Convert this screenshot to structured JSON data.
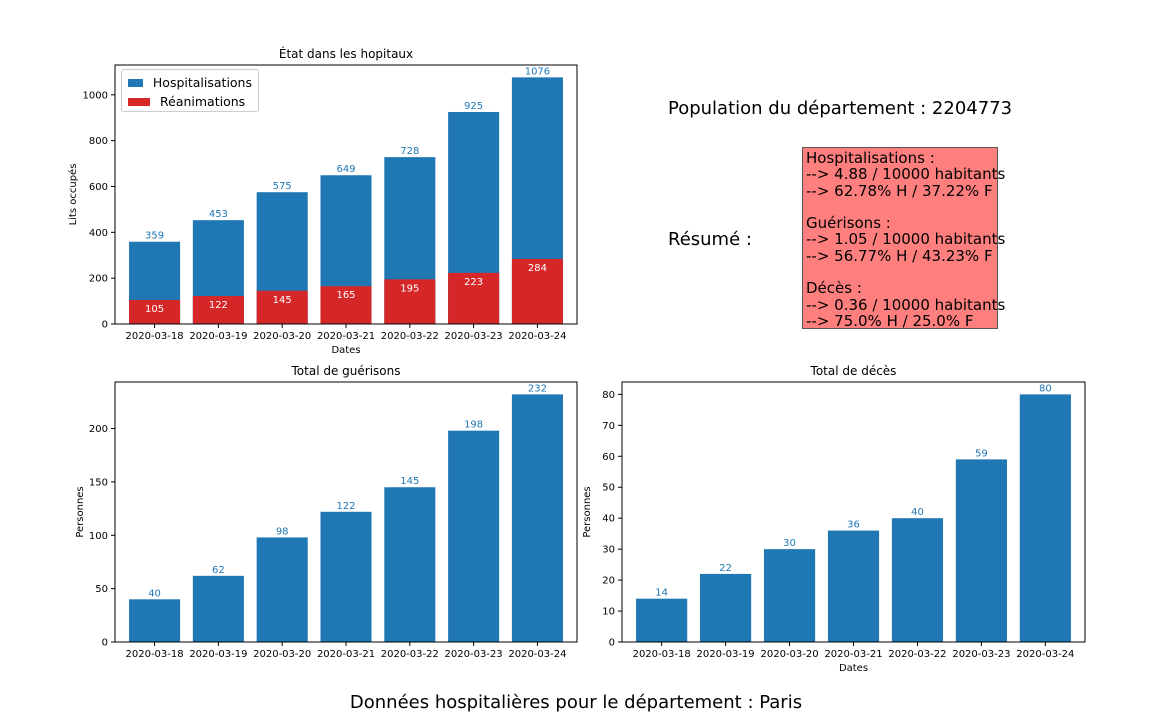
{
  "colors": {
    "hospitalisations": "#1f77b4",
    "reanimations": "#d62728",
    "summary_bg": "#ff7f7f"
  },
  "population_text": "Population du département : 2204773",
  "resume_label": "Résumé :",
  "summary": {
    "hosp_title": "Hospitalisations :",
    "hosp_line1": "--> 4.88 / 10000 habitants",
    "hosp_line2": "--> 62.78% H / 37.22% F",
    "gue_title": "Guérisons :",
    "gue_line1": "--> 1.05 / 10000 habitants",
    "gue_line2": "--> 56.77% H / 43.23% F",
    "dec_title": "Décès :",
    "dec_line1": "--> 0.36 / 10000 habitants",
    "dec_line2": "--> 75.0% H / 25.0% F"
  },
  "main_title": "Données hospitalières pour le département : Paris",
  "chart_data": [
    {
      "type": "bar",
      "title": "État dans les hopitaux",
      "xlabel": "Dates",
      "ylabel": "Lits occupés",
      "categories": [
        "2020-03-18",
        "2020-03-19",
        "2020-03-20",
        "2020-03-21",
        "2020-03-22",
        "2020-03-23",
        "2020-03-24"
      ],
      "series": [
        {
          "name": "Hospitalisations",
          "values": [
            359,
            453,
            575,
            649,
            728,
            925,
            1076
          ],
          "color": "#1f77b4"
        },
        {
          "name": "Réanimations",
          "values": [
            105,
            122,
            145,
            165,
            195,
            223,
            284
          ],
          "color": "#d62728"
        }
      ],
      "ylim": [
        0,
        1130
      ],
      "yticks": [
        0,
        200,
        400,
        600,
        800,
        1000
      ],
      "legend": "top-left",
      "grid": false
    },
    {
      "type": "bar",
      "title": "Total de guérisons",
      "xlabel": "",
      "ylabel": "Personnes",
      "categories": [
        "2020-03-18",
        "2020-03-19",
        "2020-03-20",
        "2020-03-21",
        "2020-03-22",
        "2020-03-23",
        "2020-03-24"
      ],
      "values": [
        40,
        62,
        98,
        122,
        145,
        198,
        232
      ],
      "color": "#1f77b4",
      "ylim": [
        0,
        243.6
      ],
      "yticks": [
        0,
        50,
        100,
        150,
        200
      ],
      "grid": false
    },
    {
      "type": "bar",
      "title": "Total de décès",
      "xlabel": "Dates",
      "ylabel": "Personnes",
      "categories": [
        "2020-03-18",
        "2020-03-19",
        "2020-03-20",
        "2020-03-21",
        "2020-03-22",
        "2020-03-23",
        "2020-03-24"
      ],
      "values": [
        14,
        22,
        30,
        36,
        40,
        59,
        80
      ],
      "color": "#1f77b4",
      "ylim": [
        0,
        84
      ],
      "yticks": [
        0,
        10,
        20,
        30,
        40,
        50,
        60,
        70,
        80
      ],
      "grid": false
    }
  ]
}
